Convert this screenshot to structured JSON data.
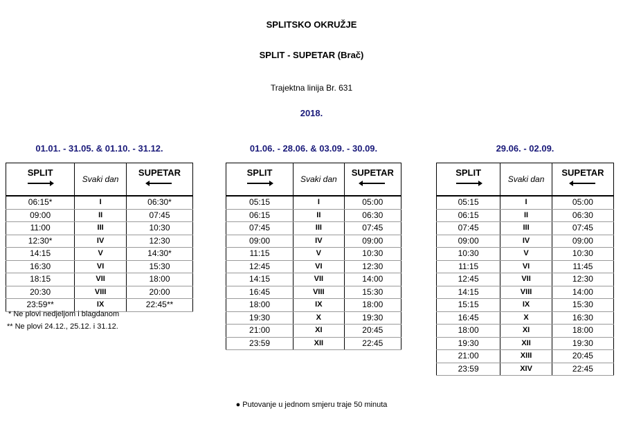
{
  "header": {
    "region": "SPLITSKO OKRUŽJE",
    "route": "SPLIT - SUPETAR (Brač)",
    "line": "Trajektna linija Br. 631",
    "year": "2018."
  },
  "columns": {
    "from": "SPLIT",
    "mid": "Svaki dan",
    "to": "SUPETAR"
  },
  "tables": [
    {
      "period": "01.01. - 31.05. & 01.10. - 31.12.",
      "rows": [
        [
          "06:15*",
          "I",
          "06:30*"
        ],
        [
          "09:00",
          "II",
          "07:45"
        ],
        [
          "11:00",
          "III",
          "10:30"
        ],
        [
          "12:30*",
          "IV",
          "12:30"
        ],
        [
          "14:15",
          "V",
          "14:30*"
        ],
        [
          "16:30",
          "VI",
          "15:30"
        ],
        [
          "18:15",
          "VII",
          "18:00"
        ],
        [
          "20:30",
          "VIII",
          "20:00"
        ],
        [
          "23:59**",
          "IX",
          "22:45**"
        ]
      ]
    },
    {
      "period": "01.06. - 28.06. & 03.09. - 30.09.",
      "rows": [
        [
          "05:15",
          "I",
          "05:00"
        ],
        [
          "06:15",
          "II",
          "06:30"
        ],
        [
          "07:45",
          "III",
          "07:45"
        ],
        [
          "09:00",
          "IV",
          "09:00"
        ],
        [
          "11:15",
          "V",
          "10:30"
        ],
        [
          "12:45",
          "VI",
          "12:30"
        ],
        [
          "14:15",
          "VII",
          "14:00"
        ],
        [
          "16:45",
          "VIII",
          "15:30"
        ],
        [
          "18:00",
          "IX",
          "18:00"
        ],
        [
          "19:30",
          "X",
          "19:30"
        ],
        [
          "21:00",
          "XI",
          "20:45"
        ],
        [
          "23:59",
          "XII",
          "22:45"
        ]
      ]
    },
    {
      "period": "29.06. - 02.09.",
      "rows": [
        [
          "05:15",
          "I",
          "05:00"
        ],
        [
          "06:15",
          "II",
          "06:30"
        ],
        [
          "07:45",
          "III",
          "07:45"
        ],
        [
          "09:00",
          "IV",
          "09:00"
        ],
        [
          "10:30",
          "V",
          "10:30"
        ],
        [
          "11:15",
          "VI",
          "11:45"
        ],
        [
          "12:45",
          "VII",
          "12:30"
        ],
        [
          "14:15",
          "VIII",
          "14:00"
        ],
        [
          "15:15",
          "IX",
          "15:30"
        ],
        [
          "16:45",
          "X",
          "16:30"
        ],
        [
          "18:00",
          "XI",
          "18:00"
        ],
        [
          "19:30",
          "XII",
          "19:30"
        ],
        [
          "21:00",
          "XIII",
          "20:45"
        ],
        [
          "23:59",
          "XIV",
          "22:45"
        ]
      ]
    }
  ],
  "notes": [
    "* Ne plovi nedjeljom i blagdanom",
    "** Ne plovi 24.12., 25.12. i 31.12."
  ],
  "footer": "● Putovanje u jednom smjeru traje 50 minuta"
}
